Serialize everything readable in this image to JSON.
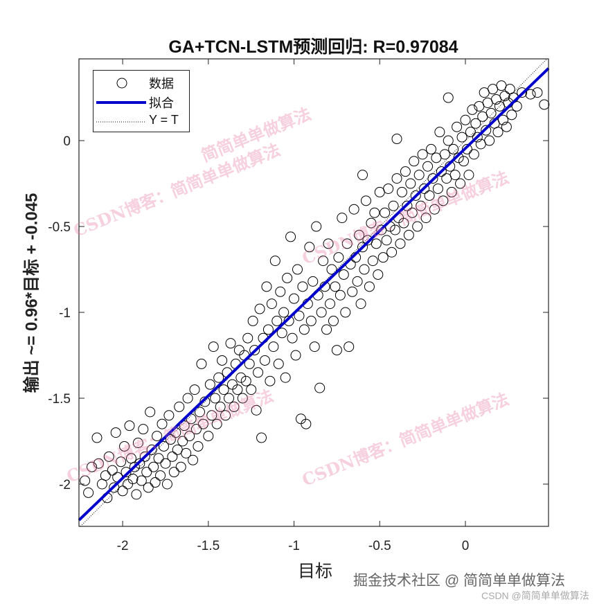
{
  "chart_data": {
    "type": "scatter",
    "title": "GA+TCN-LSTM预测回归: R=0.97084",
    "xlabel": "目标",
    "ylabel": "输出 ~= 0.96*目标 + -0.045",
    "xlim": [
      -2.255,
      0.485
    ],
    "ylim": [
      -2.246,
      0.476
    ],
    "xticks": [
      -2,
      -1.5,
      -1,
      -0.5,
      0
    ],
    "xtick_labels": [
      "-2",
      "-1.5",
      "-1",
      "-0.5",
      "0"
    ],
    "yticks": [
      -2,
      -1.5,
      -1,
      -0.5,
      0
    ],
    "ytick_labels": [
      "-2",
      "-1.5",
      "-1",
      "-0.5",
      "0"
    ],
    "grid": false,
    "legend": {
      "placement": "top-left",
      "entries": [
        "数据",
        "拟合",
        "Y = T"
      ]
    },
    "fit": {
      "slope": 0.96,
      "intercept": -0.045,
      "color": "#0000cc"
    },
    "identity_line": true,
    "R": 0.97084,
    "points": [
      [
        -2.22,
        -1.98
      ],
      [
        -2.2,
        -2.05
      ],
      [
        -2.18,
        -1.9
      ],
      [
        -2.15,
        -1.73
      ],
      [
        -2.14,
        -1.88
      ],
      [
        -2.12,
        -2.0
      ],
      [
        -2.1,
        -1.95
      ],
      [
        -2.09,
        -2.08
      ],
      [
        -2.08,
        -1.84
      ],
      [
        -2.06,
        -1.92
      ],
      [
        -2.05,
        -2.02
      ],
      [
        -2.04,
        -1.7
      ],
      [
        -2.03,
        -1.96
      ],
      [
        -2.01,
        -1.87
      ],
      [
        -2.0,
        -2.04
      ],
      [
        -1.99,
        -1.78
      ],
      [
        -1.98,
        -1.93
      ],
      [
        -1.97,
        -2.0
      ],
      [
        -1.96,
        -1.66
      ],
      [
        -1.95,
        -1.85
      ],
      [
        -1.94,
        -1.97
      ],
      [
        -1.93,
        -1.9
      ],
      [
        -1.92,
        -2.06
      ],
      [
        -1.91,
        -1.76
      ],
      [
        -1.9,
        -1.88
      ],
      [
        -1.89,
        -1.98
      ],
      [
        -1.88,
        -1.68
      ],
      [
        -1.87,
        -1.84
      ],
      [
        -1.86,
        -1.93
      ],
      [
        -1.85,
        -2.02
      ],
      [
        -1.84,
        -1.58
      ],
      [
        -1.83,
        -1.8
      ],
      [
        -1.82,
        -1.9
      ],
      [
        -1.81,
        -1.99
      ],
      [
        -1.8,
        -1.72
      ],
      [
        -1.79,
        -1.85
      ],
      [
        -1.78,
        -1.95
      ],
      [
        -1.77,
        -1.65
      ],
      [
        -1.76,
        -1.78
      ],
      [
        -1.75,
        -1.88
      ],
      [
        -1.74,
        -2.0
      ],
      [
        -1.73,
        -1.6
      ],
      [
        -1.72,
        -1.74
      ],
      [
        -1.71,
        -1.84
      ],
      [
        -1.7,
        -1.93
      ],
      [
        -1.69,
        -1.7
      ],
      [
        -1.68,
        -1.8
      ],
      [
        -1.67,
        -1.55
      ],
      [
        -1.66,
        -1.9
      ],
      [
        -1.65,
        -1.75
      ],
      [
        -1.64,
        -1.66
      ],
      [
        -1.63,
        -1.82
      ],
      [
        -1.62,
        -1.5
      ],
      [
        -1.61,
        -1.72
      ],
      [
        -1.6,
        -1.62
      ],
      [
        -1.59,
        -1.86
      ],
      [
        -1.58,
        -1.45
      ],
      [
        -1.57,
        -1.68
      ],
      [
        -1.56,
        -1.78
      ],
      [
        -1.55,
        -1.58
      ],
      [
        -1.54,
        -1.3
      ],
      [
        -1.53,
        -1.65
      ],
      [
        -1.52,
        -1.52
      ],
      [
        -1.5,
        -1.72
      ],
      [
        -1.49,
        -1.42
      ],
      [
        -1.48,
        -1.6
      ],
      [
        -1.47,
        -1.2
      ],
      [
        -1.46,
        -1.5
      ],
      [
        -1.45,
        -1.65
      ],
      [
        -1.44,
        -1.38
      ],
      [
        -1.43,
        -1.55
      ],
      [
        -1.42,
        -1.28
      ],
      [
        -1.41,
        -1.45
      ],
      [
        -1.4,
        -1.6
      ],
      [
        -1.39,
        -1.35
      ],
      [
        -1.38,
        -1.5
      ],
      [
        -1.37,
        -1.18
      ],
      [
        -1.36,
        -1.42
      ],
      [
        -1.35,
        -1.55
      ],
      [
        -1.34,
        -1.3
      ],
      [
        -1.33,
        -1.45
      ],
      [
        -1.32,
        -1.22
      ],
      [
        -1.31,
        -1.38
      ],
      [
        -1.3,
        -1.5
      ],
      [
        -1.29,
        -1.25
      ],
      [
        -1.28,
        -1.4
      ],
      [
        -1.27,
        -1.15
      ],
      [
        -1.26,
        -1.3
      ],
      [
        -1.25,
        -1.45
      ],
      [
        -1.24,
        -1.05
      ],
      [
        -1.23,
        -1.22
      ],
      [
        -1.22,
        -1.57
      ],
      [
        -1.21,
        -1.35
      ],
      [
        -1.2,
        -0.98
      ],
      [
        -1.19,
        -1.73
      ],
      [
        -1.18,
        -1.15
      ],
      [
        -1.17,
        -1.28
      ],
      [
        -1.16,
        -0.85
      ],
      [
        -1.15,
        -1.1
      ],
      [
        -1.14,
        -1.4
      ],
      [
        -1.13,
        -0.95
      ],
      [
        -1.12,
        -1.2
      ],
      [
        -1.11,
        -0.7
      ],
      [
        -1.1,
        -1.05
      ],
      [
        -1.09,
        -1.3
      ],
      [
        -1.08,
        -0.88
      ],
      [
        -1.07,
        -1.12
      ],
      [
        -1.06,
        -1.0
      ],
      [
        -1.05,
        -1.38
      ],
      [
        -1.04,
        -0.8
      ],
      [
        -1.03,
        -1.05
      ],
      [
        -1.02,
        -0.56
      ],
      [
        -1.01,
        -1.15
      ],
      [
        -1.0,
        -0.92
      ],
      [
        -0.99,
        -1.25
      ],
      [
        -0.98,
        -0.75
      ],
      [
        -0.97,
        -1.02
      ],
      [
        -0.96,
        -1.62
      ],
      [
        -0.95,
        -0.85
      ],
      [
        -0.94,
        -1.1
      ],
      [
        -0.93,
        -1.65
      ],
      [
        -0.92,
        -0.95
      ],
      [
        -0.91,
        -0.62
      ],
      [
        -0.9,
        -1.05
      ],
      [
        -0.89,
        -0.82
      ],
      [
        -0.88,
        -1.2
      ],
      [
        -0.87,
        -0.5
      ],
      [
        -0.86,
        -0.9
      ],
      [
        -0.85,
        -1.44
      ],
      [
        -0.84,
        -1.0
      ],
      [
        -0.83,
        -0.7
      ],
      [
        -0.82,
        -0.85
      ],
      [
        -0.81,
        -1.1
      ],
      [
        -0.8,
        -0.6
      ],
      [
        -0.79,
        -0.95
      ],
      [
        -0.78,
        -0.75
      ],
      [
        -0.77,
        -1.05
      ],
      [
        -0.76,
        -0.85
      ],
      [
        -0.75,
        -1.22
      ],
      [
        -0.74,
        -0.68
      ],
      [
        -0.73,
        -0.9
      ],
      [
        -0.72,
        -0.45
      ],
      [
        -0.71,
        -0.78
      ],
      [
        -0.7,
        -1.0
      ],
      [
        -0.69,
        -0.6
      ],
      [
        -0.68,
        -1.2
      ],
      [
        -0.67,
        -0.72
      ],
      [
        -0.66,
        -0.88
      ],
      [
        -0.65,
        -0.4
      ],
      [
        -0.64,
        -0.68
      ],
      [
        -0.63,
        -0.82
      ],
      [
        -0.62,
        -0.55
      ],
      [
        -0.61,
        -0.95
      ],
      [
        -0.6,
        -0.62
      ],
      [
        -0.59,
        -0.75
      ],
      [
        -0.58,
        -0.35
      ],
      [
        -0.57,
        -0.58
      ],
      [
        -0.56,
        -0.85
      ],
      [
        -0.55,
        -0.48
      ],
      [
        -0.54,
        -0.7
      ],
      [
        -0.53,
        -0.42
      ],
      [
        -0.52,
        -0.6
      ],
      [
        -0.51,
        -0.78
      ],
      [
        -0.5,
        -0.3
      ],
      [
        -0.49,
        -0.52
      ],
      [
        -0.48,
        -0.68
      ],
      [
        -0.47,
        -0.42
      ],
      [
        -0.46,
        -0.58
      ],
      [
        -0.45,
        -0.28
      ],
      [
        -0.44,
        -0.5
      ],
      [
        -0.43,
        -0.65
      ],
      [
        -0.42,
        -0.38
      ],
      [
        -0.41,
        -0.52
      ],
      [
        -0.4,
        -0.22
      ],
      [
        -0.39,
        -0.45
      ],
      [
        -0.38,
        -0.6
      ],
      [
        -0.37,
        -0.3
      ],
      [
        -0.36,
        -0.48
      ],
      [
        -0.35,
        -0.18
      ],
      [
        -0.34,
        -0.38
      ],
      [
        -0.33,
        -0.55
      ],
      [
        -0.32,
        -0.25
      ],
      [
        -0.31,
        -0.42
      ],
      [
        -0.3,
        -0.12
      ],
      [
        -0.29,
        -0.32
      ],
      [
        -0.28,
        -0.5
      ],
      [
        -0.27,
        -0.2
      ],
      [
        -0.26,
        -0.38
      ],
      [
        -0.25,
        -0.08
      ],
      [
        -0.24,
        -0.28
      ],
      [
        -0.23,
        -0.45
      ],
      [
        -0.22,
        -0.15
      ],
      [
        -0.21,
        -0.32
      ],
      [
        -0.2,
        -0.05
      ],
      [
        -0.19,
        -0.22
      ],
      [
        -0.18,
        -0.4
      ],
      [
        -0.17,
        -0.1
      ],
      [
        -0.16,
        -0.28
      ],
      [
        -0.15,
        0.05
      ],
      [
        -0.14,
        -0.18
      ],
      [
        -0.13,
        -0.35
      ],
      [
        -0.12,
        -0.08
      ],
      [
        -0.11,
        -0.22
      ],
      [
        -0.1,
        0.0
      ],
      [
        -0.09,
        -0.15
      ],
      [
        -0.08,
        -0.3
      ],
      [
        -0.07,
        -0.05
      ],
      [
        -0.06,
        -0.2
      ],
      [
        -0.05,
        0.08
      ],
      [
        -0.04,
        -0.1
      ],
      [
        -0.03,
        -0.25
      ],
      [
        -0.02,
        0.02
      ],
      [
        -0.01,
        -0.12
      ],
      [
        0.0,
        0.12
      ],
      [
        0.01,
        -0.05
      ],
      [
        0.02,
        -0.2
      ],
      [
        0.03,
        0.05
      ],
      [
        0.04,
        0.18
      ],
      [
        0.05,
        -0.08
      ],
      [
        0.06,
        0.1
      ],
      [
        0.07,
        0.02
      ],
      [
        0.08,
        0.2
      ],
      [
        0.09,
        -0.02
      ],
      [
        0.1,
        0.14
      ],
      [
        0.11,
        0.28
      ],
      [
        0.12,
        0.06
      ],
      [
        0.13,
        0.22
      ],
      [
        0.14,
        0.0
      ],
      [
        0.15,
        0.16
      ],
      [
        0.16,
        0.3
      ],
      [
        0.17,
        0.1
      ],
      [
        0.18,
        0.24
      ],
      [
        0.19,
        0.05
      ],
      [
        0.2,
        0.2
      ],
      [
        0.21,
        0.32
      ],
      [
        0.22,
        0.12
      ],
      [
        0.23,
        0.26
      ],
      [
        0.24,
        0.08
      ],
      [
        0.25,
        0.22
      ],
      [
        0.26,
        0.3
      ],
      [
        0.27,
        0.15
      ],
      [
        0.28,
        0.25
      ],
      [
        0.3,
        0.2
      ],
      [
        0.33,
        0.28
      ],
      [
        0.38,
        0.27
      ],
      [
        0.42,
        0.28
      ],
      [
        0.46,
        0.21
      ],
      [
        -0.4,
        0.01
      ],
      [
        -0.1,
        0.25
      ],
      [
        -0.6,
        -0.2
      ]
    ]
  },
  "watermarks": [
    "CSDN博客：简简单单做算法",
    "CSDN博客：简简单单做算法",
    "CSDN博客：简简单单做算法",
    "CSDN博客：简简单单做算法",
    "简简单单做算法"
  ],
  "credits": {
    "line1": "掘金技术社区 @ 简简单单做算法",
    "line2": "CSDN @简简单单做算法"
  }
}
